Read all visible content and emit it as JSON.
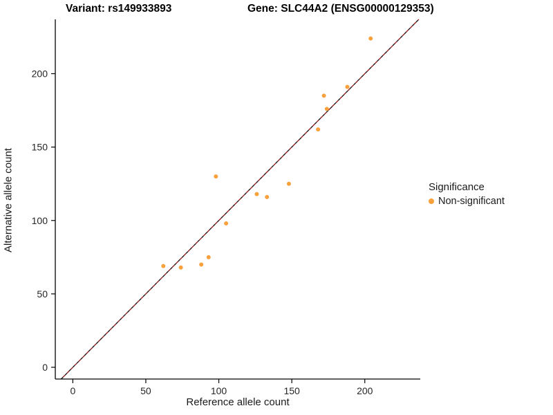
{
  "titles": {
    "left": "Variant: rs149933893",
    "right": "Gene: SLC44A2 (ENSG00000129353)"
  },
  "legend": {
    "title": "Significance",
    "items": [
      {
        "label": "Non-significant",
        "color": "#F9A13C"
      }
    ]
  },
  "chart_data": {
    "type": "scatter",
    "xlabel": "Reference allele count",
    "ylabel": "Alternative allele count",
    "xlim": [
      -12,
      238
    ],
    "ylim": [
      -8,
      237
    ],
    "xticks": [
      0,
      50,
      100,
      150,
      200
    ],
    "yticks": [
      0,
      50,
      100,
      150,
      200
    ],
    "grid": false,
    "legend_position": "right",
    "identity_line": {
      "style": "dashed",
      "colors": [
        "#1a1a1a",
        "#9E1B1B"
      ],
      "dash": [
        4,
        4
      ]
    },
    "point_color": "#F9A13C",
    "point_radius": 3,
    "series": [
      {
        "name": "Non-significant",
        "color": "#F9A13C",
        "points": [
          [
            62,
            69
          ],
          [
            74,
            68
          ],
          [
            88,
            70
          ],
          [
            93,
            75
          ],
          [
            98,
            130
          ],
          [
            105,
            98
          ],
          [
            126,
            118
          ],
          [
            133,
            116
          ],
          [
            148,
            125
          ],
          [
            168,
            162
          ],
          [
            172,
            185
          ],
          [
            174,
            176
          ],
          [
            188,
            191
          ],
          [
            204,
            224
          ]
        ]
      }
    ]
  }
}
